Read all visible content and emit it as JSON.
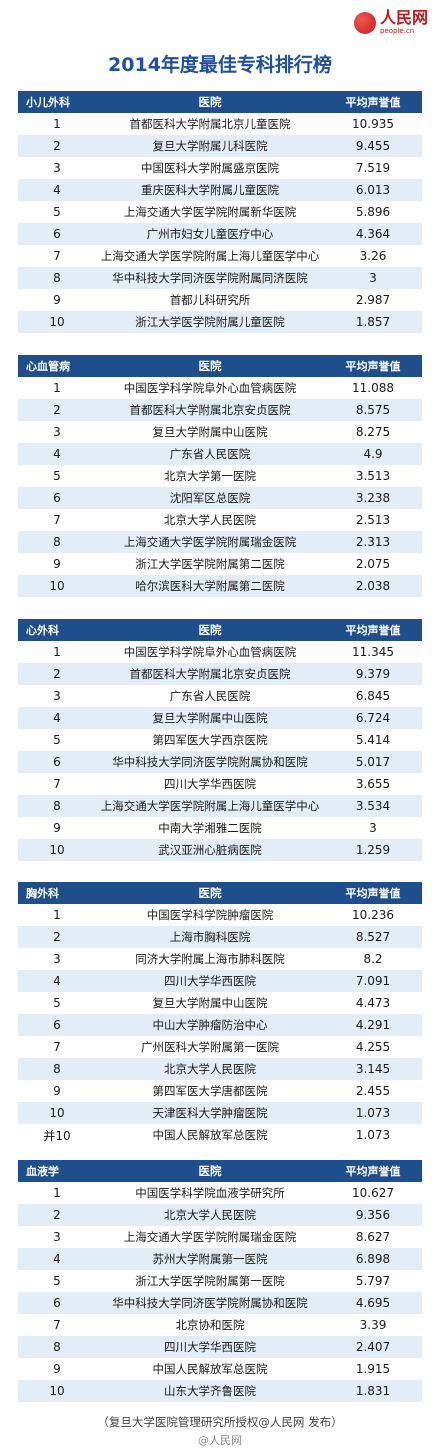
{
  "logo": {
    "cn": "人民网",
    "en": "people.cn"
  },
  "title": "2014年度最佳专科排行榜",
  "col_hospital": "医院",
  "col_score": "平均声誉值",
  "sections": [
    {
      "name": "小儿外科",
      "rows": [
        {
          "rank": "1",
          "hospital": "首都医科大学附属北京儿童医院",
          "score": "10.935"
        },
        {
          "rank": "2",
          "hospital": "复旦大学附属儿科医院",
          "score": "9.455"
        },
        {
          "rank": "3",
          "hospital": "中国医科大学附属盛京医院",
          "score": "7.519"
        },
        {
          "rank": "4",
          "hospital": "重庆医科大学附属儿童医院",
          "score": "6.013"
        },
        {
          "rank": "5",
          "hospital": "上海交通大学医学院附属新华医院",
          "score": "5.896"
        },
        {
          "rank": "6",
          "hospital": "广州市妇女儿童医疗中心",
          "score": "4.364"
        },
        {
          "rank": "7",
          "hospital": "上海交通大学医学院附属上海儿童医学中心",
          "score": "3.26"
        },
        {
          "rank": "8",
          "hospital": "华中科技大学同济医学院附属同济医院",
          "score": "3"
        },
        {
          "rank": "9",
          "hospital": "首都儿科研究所",
          "score": "2.987"
        },
        {
          "rank": "10",
          "hospital": "浙江大学医学院附属儿童医院",
          "score": "1.857"
        }
      ]
    },
    {
      "name": "心血管病",
      "rows": [
        {
          "rank": "1",
          "hospital": "中国医学科学院阜外心血管病医院",
          "score": "11.088"
        },
        {
          "rank": "2",
          "hospital": "首都医科大学附属北京安贞医院",
          "score": "8.575"
        },
        {
          "rank": "3",
          "hospital": "复旦大学附属中山医院",
          "score": "8.275"
        },
        {
          "rank": "4",
          "hospital": "广东省人民医院",
          "score": "4.9"
        },
        {
          "rank": "5",
          "hospital": "北京大学第一医院",
          "score": "3.513"
        },
        {
          "rank": "6",
          "hospital": "沈阳军区总医院",
          "score": "3.238"
        },
        {
          "rank": "7",
          "hospital": "北京大学人民医院",
          "score": "2.513"
        },
        {
          "rank": "8",
          "hospital": "上海交通大学医学院附属瑞金医院",
          "score": "2.313"
        },
        {
          "rank": "9",
          "hospital": "浙江大学医学院附属第二医院",
          "score": "2.075"
        },
        {
          "rank": "10",
          "hospital": "哈尔滨医科大学附属第二医院",
          "score": "2.038"
        }
      ]
    },
    {
      "name": "心外科",
      "rows": [
        {
          "rank": "1",
          "hospital": "中国医学科学院阜外心血管病医院",
          "score": "11.345"
        },
        {
          "rank": "2",
          "hospital": "首都医科大学附属北京安贞医院",
          "score": "9.379"
        },
        {
          "rank": "3",
          "hospital": "广东省人民医院",
          "score": "6.845"
        },
        {
          "rank": "4",
          "hospital": "复旦大学附属中山医院",
          "score": "6.724"
        },
        {
          "rank": "5",
          "hospital": "第四军医大学西京医院",
          "score": "5.414"
        },
        {
          "rank": "6",
          "hospital": "华中科技大学同济医学院附属协和医院",
          "score": "5.017"
        },
        {
          "rank": "7",
          "hospital": "四川大学华西医院",
          "score": "3.655"
        },
        {
          "rank": "8",
          "hospital": "上海交通大学医学院附属上海儿童医学中心",
          "score": "3.534"
        },
        {
          "rank": "9",
          "hospital": "中南大学湘雅二医院",
          "score": "3"
        },
        {
          "rank": "10",
          "hospital": "武汉亚洲心脏病医院",
          "score": "1.259"
        }
      ]
    },
    {
      "name": "胸外科",
      "rows": [
        {
          "rank": "1",
          "hospital": "中国医学科学院肿瘤医院",
          "score": "10.236"
        },
        {
          "rank": "2",
          "hospital": "上海市胸科医院",
          "score": "8.527"
        },
        {
          "rank": "3",
          "hospital": "同济大学附属上海市肺科医院",
          "score": "8.2"
        },
        {
          "rank": "4",
          "hospital": "四川大学华西医院",
          "score": "7.091"
        },
        {
          "rank": "5",
          "hospital": "复旦大学附属中山医院",
          "score": "4.473"
        },
        {
          "rank": "6",
          "hospital": "中山大学肿瘤防治中心",
          "score": "4.291"
        },
        {
          "rank": "7",
          "hospital": "广州医科大学附属第一医院",
          "score": "4.255"
        },
        {
          "rank": "8",
          "hospital": "北京大学人民医院",
          "score": "3.145"
        },
        {
          "rank": "9",
          "hospital": "第四军医大学唐都医院",
          "score": "2.455"
        },
        {
          "rank": "10",
          "hospital": "天津医科大学肿瘤医院",
          "score": "1.073"
        },
        {
          "rank": "并10",
          "hospital": "中国人民解放军总医院",
          "score": "1.073"
        }
      ]
    },
    {
      "name": "血液学",
      "rows": [
        {
          "rank": "1",
          "hospital": "中国医学科学院血液学研究所",
          "score": "10.627"
        },
        {
          "rank": "2",
          "hospital": "北京大学人民医院",
          "score": "9.356"
        },
        {
          "rank": "3",
          "hospital": "上海交通大学医学院附属瑞金医院",
          "score": "8.627"
        },
        {
          "rank": "4",
          "hospital": "苏州大学附属第一医院",
          "score": "6.898"
        },
        {
          "rank": "5",
          "hospital": "浙江大学医学院附属第一医院",
          "score": "5.797"
        },
        {
          "rank": "6",
          "hospital": "华中科技大学同济医学院附属协和医院",
          "score": "4.695"
        },
        {
          "rank": "7",
          "hospital": "北京协和医院",
          "score": "3.39"
        },
        {
          "rank": "8",
          "hospital": "四川大学华西医院",
          "score": "2.407"
        },
        {
          "rank": "9",
          "hospital": "中国人民解放军总医院",
          "score": "1.915"
        },
        {
          "rank": "10",
          "hospital": "山东大学齐鲁医院",
          "score": "1.831"
        }
      ]
    }
  ],
  "footer": "（复旦大学医院管理研究所授权@人民网 发布）",
  "weibo": "@人民网"
}
